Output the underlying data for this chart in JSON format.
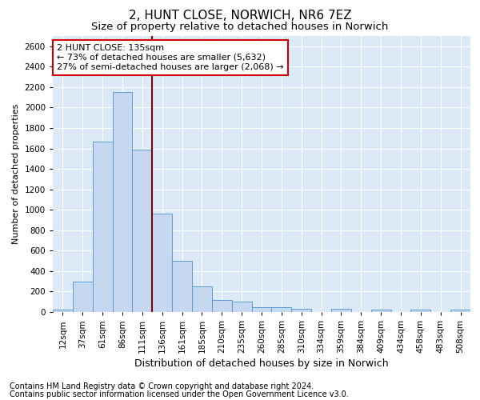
{
  "title": "2, HUNT CLOSE, NORWICH, NR6 7EZ",
  "subtitle": "Size of property relative to detached houses in Norwich",
  "xlabel": "Distribution of detached houses by size in Norwich",
  "ylabel": "Number of detached properties",
  "footer_line1": "Contains HM Land Registry data © Crown copyright and database right 2024.",
  "footer_line2": "Contains public sector information licensed under the Open Government Licence v3.0.",
  "annotation_title": "2 HUNT CLOSE: 135sqm",
  "annotation_line2": "← 73% of detached houses are smaller (5,632)",
  "annotation_line3": "27% of semi-detached houses are larger (2,068) →",
  "bar_labels": [
    "12sqm",
    "37sqm",
    "61sqm",
    "86sqm",
    "111sqm",
    "136sqm",
    "161sqm",
    "185sqm",
    "210sqm",
    "235sqm",
    "260sqm",
    "285sqm",
    "310sqm",
    "334sqm",
    "359sqm",
    "384sqm",
    "409sqm",
    "434sqm",
    "458sqm",
    "483sqm",
    "508sqm"
  ],
  "bar_values": [
    25,
    300,
    1670,
    2150,
    1590,
    960,
    500,
    250,
    120,
    100,
    50,
    50,
    30,
    0,
    35,
    0,
    20,
    0,
    20,
    0,
    25
  ],
  "bar_color": "#c5d8f0",
  "bar_edgecolor": "#5b9bd5",
  "vline_x_index": 4.5,
  "vline_color": "#8b0000",
  "ylim": [
    0,
    2700
  ],
  "yticks": [
    0,
    200,
    400,
    600,
    800,
    1000,
    1200,
    1400,
    1600,
    1800,
    2000,
    2200,
    2400,
    2600
  ],
  "background_color": "#dce9f7",
  "fig_background": "#ffffff",
  "annotation_box_facecolor": "#ffffff",
  "annotation_box_edgecolor": "#cc0000",
  "grid_color": "#ffffff",
  "title_fontsize": 11,
  "subtitle_fontsize": 9.5,
  "xlabel_fontsize": 9,
  "ylabel_fontsize": 8,
  "tick_fontsize": 7.5,
  "annotation_fontsize": 8,
  "footer_fontsize": 7
}
